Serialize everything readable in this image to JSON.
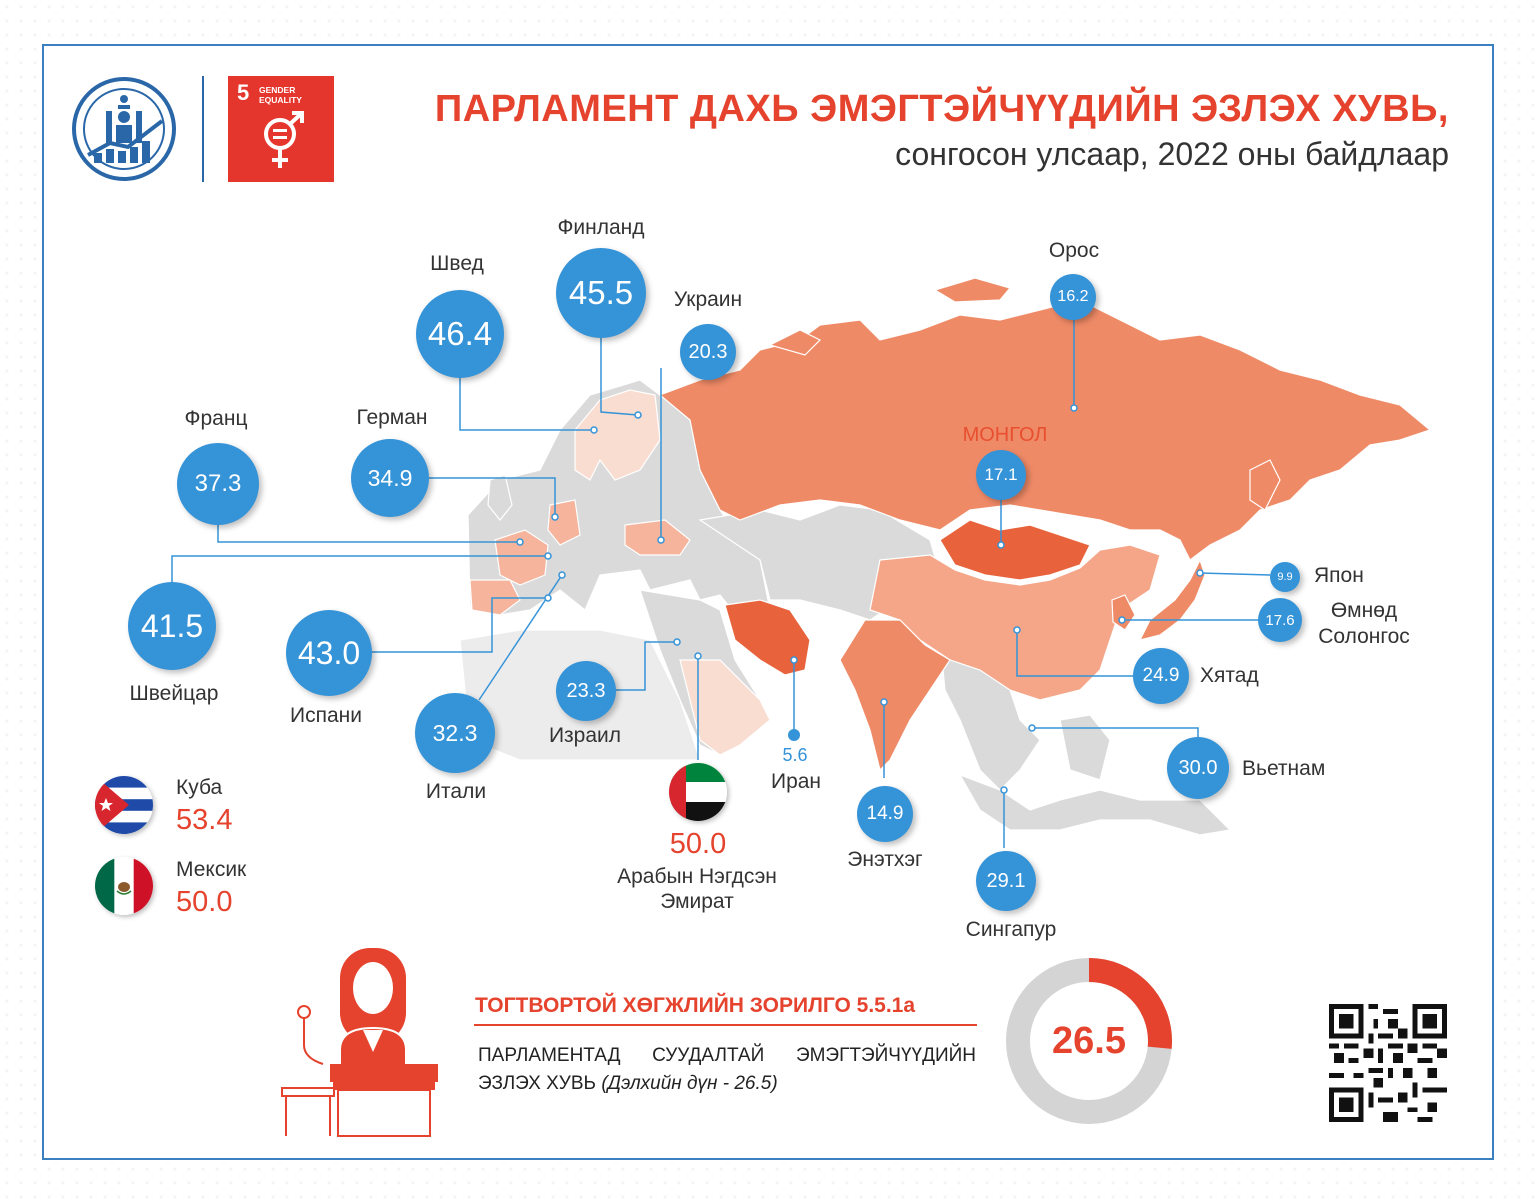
{
  "title": "ПАРЛАМЕНТ ДАХЬ ЭМЭГТЭЙЧҮҮДИЙН ЭЗЛЭХ ХУВЬ,",
  "subtitle": "сонгосон улсаар, 2022 оны байдлаар",
  "sdg_badge": {
    "number": "5",
    "label_line1": "GENDER",
    "label_line2": "EQUALITY"
  },
  "colors": {
    "accent_red": "#e5432d",
    "bubble_blue": "#3593d8",
    "frame_blue": "#3a7fbf",
    "land_gray": "#dadada",
    "land_orange": "#ef8a67"
  },
  "mongolia_label": "МОНГОЛ",
  "countries": [
    {
      "key": "finland",
      "name": "Финланд",
      "value": "45.5"
    },
    {
      "key": "sweden",
      "name": "Швед",
      "value": "46.4"
    },
    {
      "key": "ukraine",
      "name": "Украин",
      "value": "20.3"
    },
    {
      "key": "russia",
      "name": "Орос",
      "value": "16.2"
    },
    {
      "key": "mongolia",
      "name": "МОНГОЛ",
      "value": "17.1"
    },
    {
      "key": "france",
      "name": "Франц",
      "value": "37.3"
    },
    {
      "key": "germany",
      "name": "Герман",
      "value": "34.9"
    },
    {
      "key": "switzerland",
      "name": "Швейцар",
      "value": "41.5"
    },
    {
      "key": "spain",
      "name": "Испани",
      "value": "43.0"
    },
    {
      "key": "italy",
      "name": "Итали",
      "value": "32.3"
    },
    {
      "key": "israel",
      "name": "Израил",
      "value": "23.3"
    },
    {
      "key": "iran",
      "name": "Иран",
      "value": "5.6"
    },
    {
      "key": "uae",
      "name": "Арабын Нэгдсэн Эмират",
      "value": "50.0"
    },
    {
      "key": "india",
      "name": "Энэтхэг",
      "value": "14.9"
    },
    {
      "key": "singapore",
      "name": "Сингапур",
      "value": "29.1"
    },
    {
      "key": "vietnam",
      "name": "Вьетнам",
      "value": "30.0"
    },
    {
      "key": "china",
      "name": "Хятад",
      "value": "24.9"
    },
    {
      "key": "south_korea",
      "name": "Өмнөд Солонгос",
      "value": "17.6"
    },
    {
      "key": "japan",
      "name": "Япон",
      "value": "9.9"
    },
    {
      "key": "cuba",
      "name": "Куба",
      "value": "53.4"
    },
    {
      "key": "mexico",
      "name": "Мексик",
      "value": "50.0"
    }
  ],
  "labels": {
    "finland": "Финланд",
    "sweden": "Швед",
    "ukraine": "Украин",
    "russia": "Орос",
    "france": "Франц",
    "germany": "Герман",
    "switzerland": "Швейцар",
    "spain": "Испани",
    "italy": "Итали",
    "israel": "Израил",
    "iran": "Иран",
    "uae_line1": "Арабын Нэгдсэн",
    "uae_line2": "Эмират",
    "india": "Энэтхэг",
    "singapore": "Сингапур",
    "vietnam": "Вьетнам",
    "china": "Хятад",
    "south_korea_line1": "Өмнөд",
    "south_korea_line2": "Солонгос",
    "japan": "Япон",
    "cuba": "Куба",
    "mexico": "Мексик"
  },
  "values": {
    "finland": "45.5",
    "sweden": "46.4",
    "ukraine": "20.3",
    "russia": "16.2",
    "mongolia": "17.1",
    "france": "37.3",
    "germany": "34.9",
    "switzerland": "41.5",
    "spain": "43.0",
    "italy": "32.3",
    "israel": "23.3",
    "iran": "5.6",
    "uae": "50.0",
    "india": "14.9",
    "singapore": "29.1",
    "vietnam": "30.0",
    "china": "24.9",
    "south_korea": "17.6",
    "japan": "9.9",
    "cuba": "53.4",
    "mexico": "50.0"
  },
  "goal": {
    "title": "ТОГТВОРТОЙ ХӨГЖЛИЙН ЗОРИЛГО 5.5.1а",
    "line1": "ПАРЛАМЕНТАД СУУДАЛТАЙ ЭМЭГТЭЙЧҮҮДИЙН",
    "line2": "ЭЗЛЭХ ХУВЬ",
    "note": "(Дэлхийн дүн - 26.5)",
    "world_value": "26.5",
    "world_fraction": 0.265
  },
  "icons": [
    "mongolia-statistics-emblem-icon",
    "gender-equality-icon",
    "woman-at-podium-icon",
    "cuba-flag-icon",
    "mexico-flag-icon",
    "uae-flag-icon",
    "qr-code-icon"
  ]
}
